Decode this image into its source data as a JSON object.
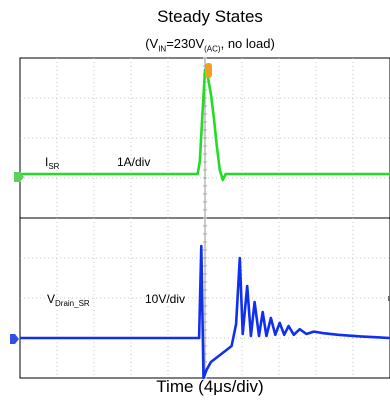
{
  "chart_data": {
    "type": "line",
    "title": "Steady States",
    "subtitle": {
      "prefix": "(V",
      "sub1": "IN",
      "middle": "=230V",
      "sub2": "(AC)",
      "suffix": ", no load)"
    },
    "xlabel": "Time (4μs/div)",
    "grid": true,
    "divisions": {
      "x": 10,
      "y": 8
    },
    "series": [
      {
        "name_main": "I",
        "name_sub": "SR",
        "scale": "1A/div",
        "color": "#22dd22",
        "baseline_div": 1.1,
        "x": [
          0.0,
          4.8,
          4.86,
          4.92,
          5.0,
          5.08,
          5.16,
          5.24,
          5.32,
          5.4,
          5.48,
          5.56,
          10.0
        ],
        "y": [
          0.0,
          0.0,
          0.3,
          1.3,
          2.6,
          2.4,
          2.0,
          1.4,
          0.7,
          0.1,
          -0.15,
          0.0,
          0.0
        ]
      },
      {
        "name_main": "V",
        "name_sub": "Drain_SR",
        "scale": "10V/div",
        "color": "#1030ee",
        "baseline_div": 1.0,
        "x": [
          0.0,
          4.84,
          4.9,
          4.96,
          5.04,
          5.16,
          5.3,
          5.44,
          5.58,
          5.72,
          5.84,
          5.94,
          6.02,
          6.14,
          6.24,
          6.34,
          6.46,
          6.56,
          6.66,
          6.78,
          6.9,
          7.02,
          7.14,
          7.26,
          7.4,
          7.56,
          7.74,
          7.94,
          8.2,
          8.6,
          9.2,
          10.0
        ],
        "y": [
          0.0,
          0.0,
          2.3,
          -1.0,
          -0.8,
          -0.6,
          -0.5,
          -0.4,
          -0.3,
          -0.2,
          0.35,
          2.0,
          0.1,
          1.3,
          0.05,
          0.9,
          0.05,
          0.65,
          0.05,
          0.5,
          0.08,
          0.38,
          0.08,
          0.3,
          0.08,
          0.22,
          0.1,
          0.16,
          0.12,
          0.08,
          0.04,
          0.0
        ]
      }
    ]
  }
}
